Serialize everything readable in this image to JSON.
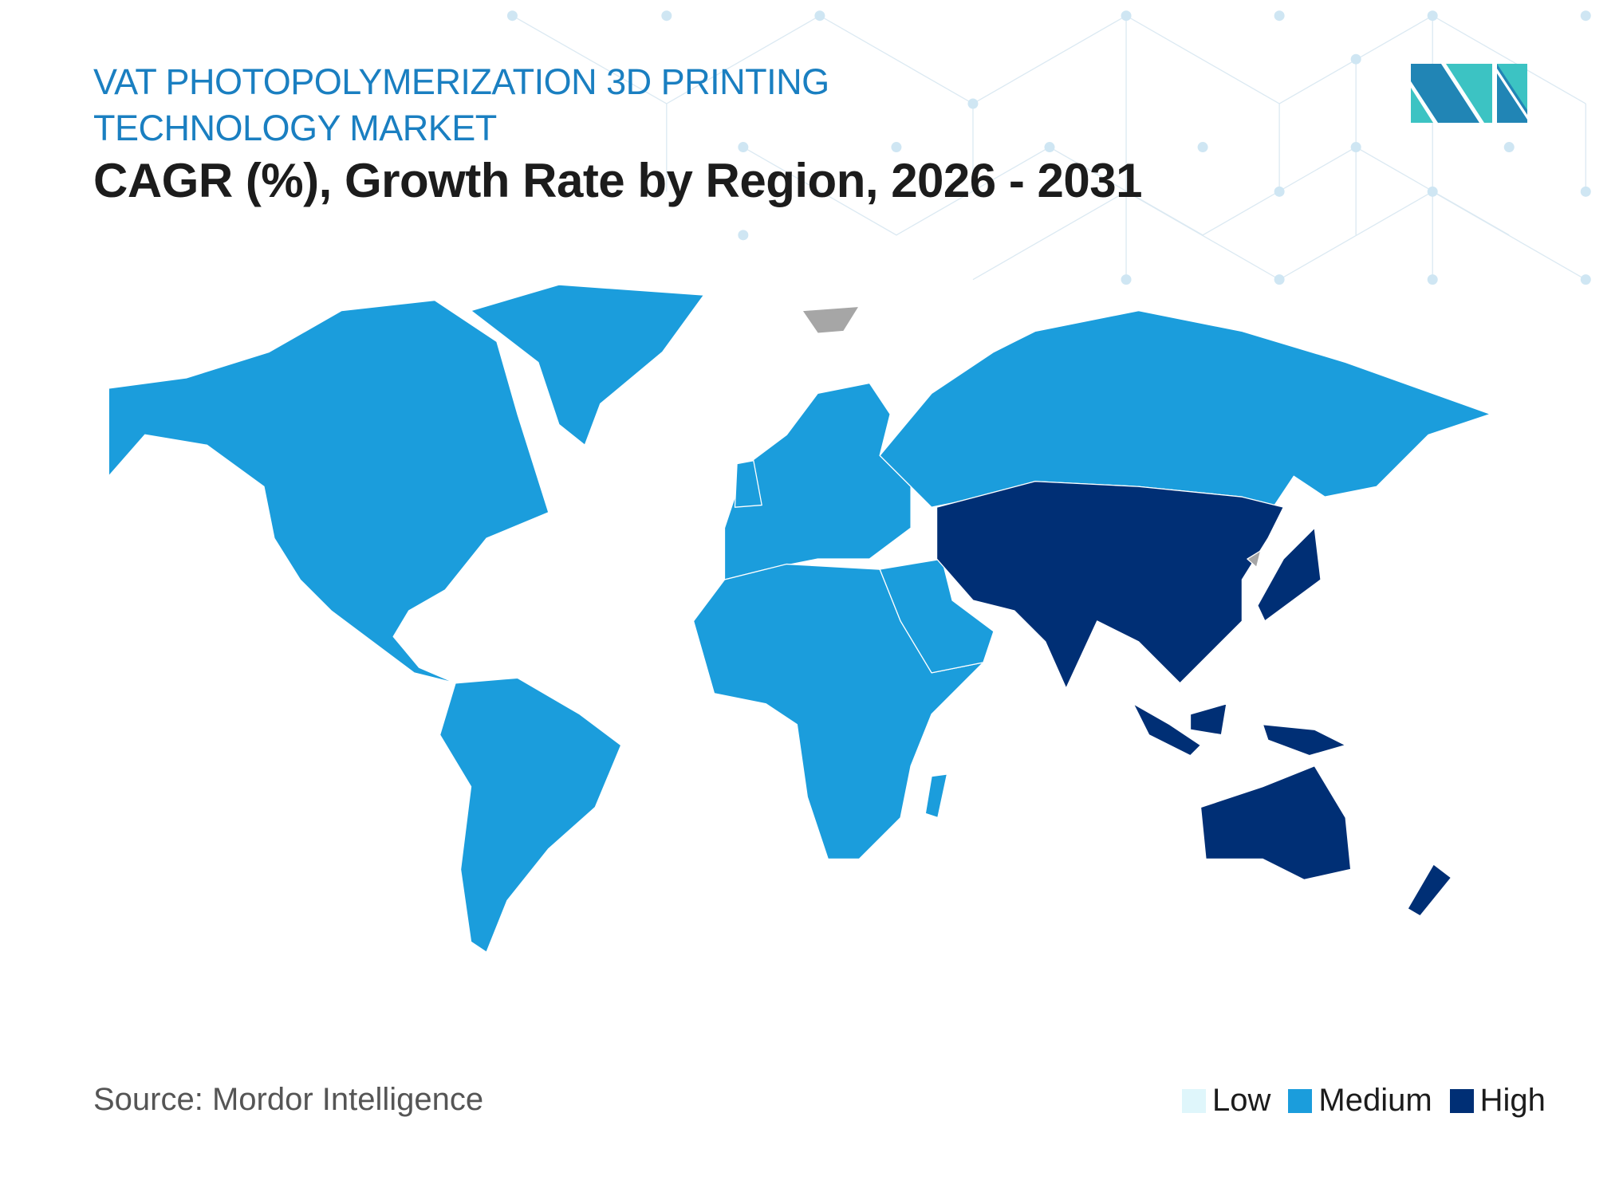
{
  "header": {
    "title": "VAT PHOTOPOLYMERIZATION 3D PRINTING TECHNOLOGY MARKET",
    "subtitle": "CAGR (%), Growth Rate by Region, 2026 - 2031"
  },
  "map": {
    "type": "choropleth",
    "regions": [
      {
        "region": "North America",
        "level": "Medium"
      },
      {
        "region": "South America",
        "level": "Medium"
      },
      {
        "region": "Europe",
        "level": "Medium"
      },
      {
        "region": "Middle East and Africa",
        "level": "Medium"
      },
      {
        "region": "Asia-Pacific",
        "level": "High"
      }
    ]
  },
  "legend": {
    "items": [
      {
        "label": "Low",
        "color": "#dff6fb"
      },
      {
        "label": "Medium",
        "color": "#1b9ddc"
      },
      {
        "label": "High",
        "color": "#002f75"
      }
    ]
  },
  "colors": {
    "title": "#1a7fc1",
    "no_data": "#a6a6a6",
    "logo_dark": "#2185b5",
    "logo_light": "#3cc3c3"
  },
  "footer": {
    "source": "Source: Mordor Intelligence"
  }
}
